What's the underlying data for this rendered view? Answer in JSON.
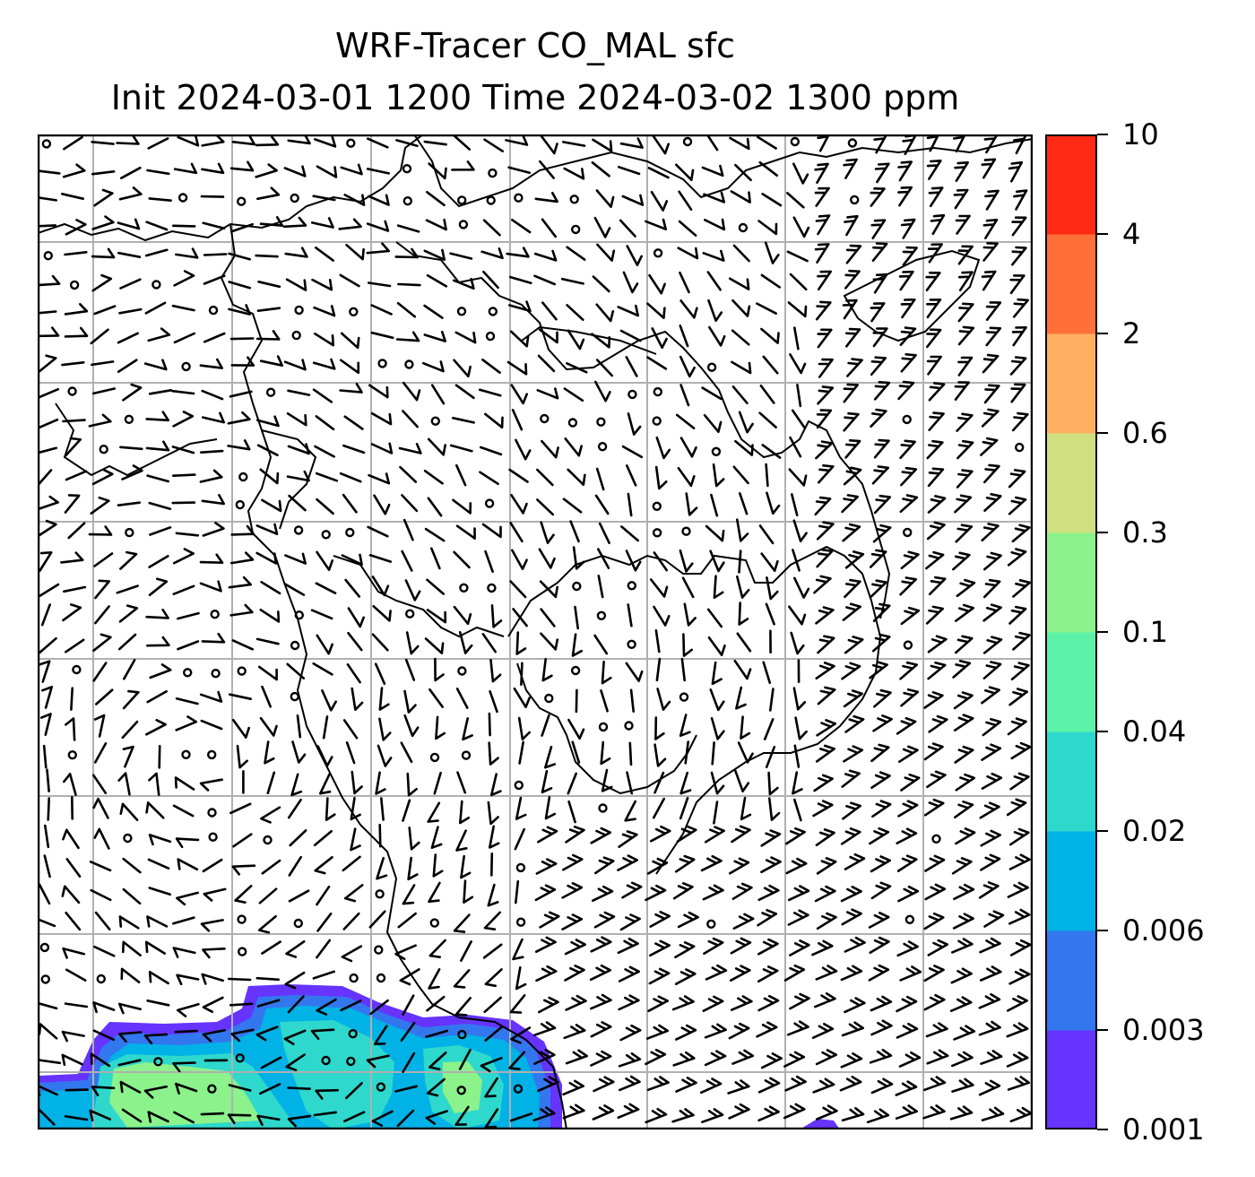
{
  "title": {
    "line1": "WRF-Tracer CO_MAL sfc",
    "line2": "Init 2024-03-01 1200 Time 2024-03-02 1300 ppm"
  },
  "colorbar": {
    "levels": [
      "0.001",
      "0.003",
      "0.006",
      "0.02",
      "0.04",
      "0.1",
      "0.3",
      "0.6",
      "2",
      "4",
      "10"
    ],
    "colors": [
      "#6633ff",
      "#3377ee",
      "#00b2e6",
      "#2ed8cc",
      "#5cf2aa",
      "#8cf28c",
      "#d0e080",
      "#ffb060",
      "#ff7038",
      "#ff2a14"
    ]
  },
  "map": {
    "gridlines": "on",
    "gridline_color": "#b0b0b0",
    "plume_colors": {
      "outer": "#6633ff",
      "mid": "#3377ee",
      "core": "#00b2e6",
      "hot": "#2ed8cc",
      "peak": "#8cf28c"
    }
  }
}
